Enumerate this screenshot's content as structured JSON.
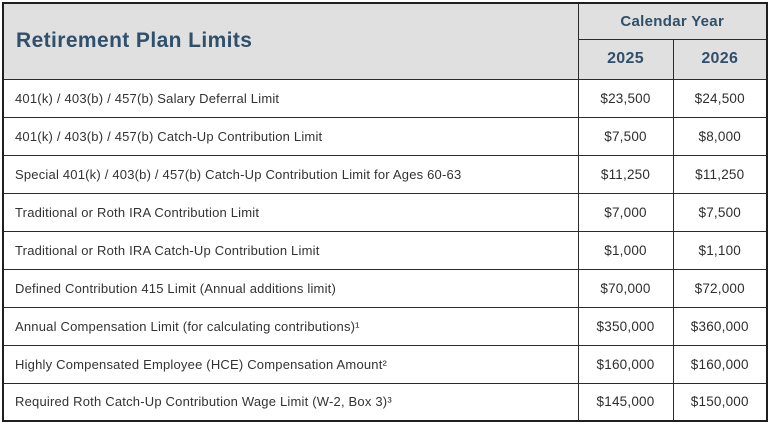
{
  "table": {
    "title": "Retirement Plan Limits",
    "header_group": "Calendar Year",
    "years": [
      "2025",
      "2026"
    ],
    "rows": [
      {
        "label": "401(k) / 403(b) / 457(b) Salary Deferral Limit",
        "values": [
          "$23,500",
          "$24,500"
        ]
      },
      {
        "label": "401(k) / 403(b) / 457(b) Catch-Up Contribution Limit",
        "values": [
          "$7,500",
          "$8,000"
        ]
      },
      {
        "label": "Special 401(k) / 403(b) / 457(b) Catch-Up Contribution Limit for Ages 60-63",
        "values": [
          "$11,250",
          "$11,250"
        ]
      },
      {
        "label": "Traditional or Roth IRA Contribution Limit",
        "values": [
          "$7,000",
          "$7,500"
        ]
      },
      {
        "label": "Traditional or Roth IRA Catch-Up Contribution Limit",
        "values": [
          "$1,000",
          "$1,100"
        ]
      },
      {
        "label": "Defined Contribution 415 Limit (Annual additions limit)",
        "values": [
          "$70,000",
          "$72,000"
        ]
      },
      {
        "label": "Annual Compensation Limit (for calculating contributions)¹",
        "values": [
          "$350,000",
          "$360,000"
        ]
      },
      {
        "label": "Highly Compensated Employee (HCE) Compensation Amount²",
        "values": [
          "$160,000",
          "$160,000"
        ]
      },
      {
        "label": "Required Roth Catch-Up Contribution Wage Limit (W-2, Box 3)³",
        "values": [
          "$145,000",
          "$150,000"
        ]
      }
    ]
  },
  "colors": {
    "header_bg": "#e0e0e0",
    "accent_navy": "#2f4f6b",
    "border_dark": "#1f1f1f",
    "body_text": "#333333"
  }
}
